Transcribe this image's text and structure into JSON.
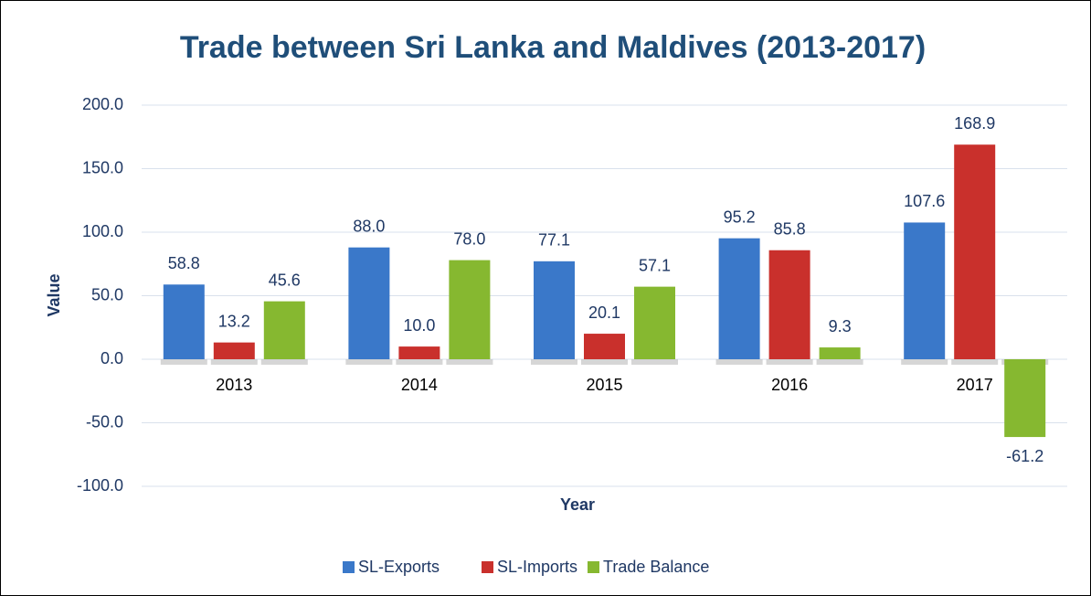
{
  "chart_data": {
    "type": "bar",
    "title": "Trade between Sri Lanka and Maldives (2013-2017)",
    "x_label": "Year",
    "y_label": "Value",
    "categories": [
      "2013",
      "2014",
      "2015",
      "2016",
      "2017"
    ],
    "series": [
      {
        "name": "SL-Exports",
        "color": "#3a78c9",
        "values": [
          58.8,
          88.0,
          77.1,
          95.2,
          107.6
        ],
        "value_labels": [
          "58.8",
          "88.0",
          "77.1",
          "95.2",
          "107.6"
        ]
      },
      {
        "name": "SL-Imports",
        "color": "#c9302c",
        "values": [
          13.2,
          10.0,
          20.1,
          85.8,
          168.9
        ],
        "value_labels": [
          "13.2",
          "10.0",
          "20.1",
          "85.8",
          "168.9"
        ]
      },
      {
        "name": "Trade Balance",
        "color": "#86b830",
        "values": [
          45.6,
          78.0,
          57.1,
          9.3,
          -61.2
        ],
        "value_labels": [
          "45.6",
          "78.0",
          "57.1",
          "9.3",
          "-61.2"
        ]
      }
    ],
    "ylim": [
      -100,
      200
    ],
    "yticks": [
      {
        "value": -100,
        "label": "-100.0"
      },
      {
        "value": -50,
        "label": "-50.0"
      },
      {
        "value": 0,
        "label": "0.0"
      },
      {
        "value": 50,
        "label": "50.0"
      },
      {
        "value": 100,
        "label": "100.0"
      },
      {
        "value": 150,
        "label": "150.0"
      },
      {
        "value": 200,
        "label": "200.0"
      }
    ],
    "grid": true,
    "legend": "bottom"
  }
}
